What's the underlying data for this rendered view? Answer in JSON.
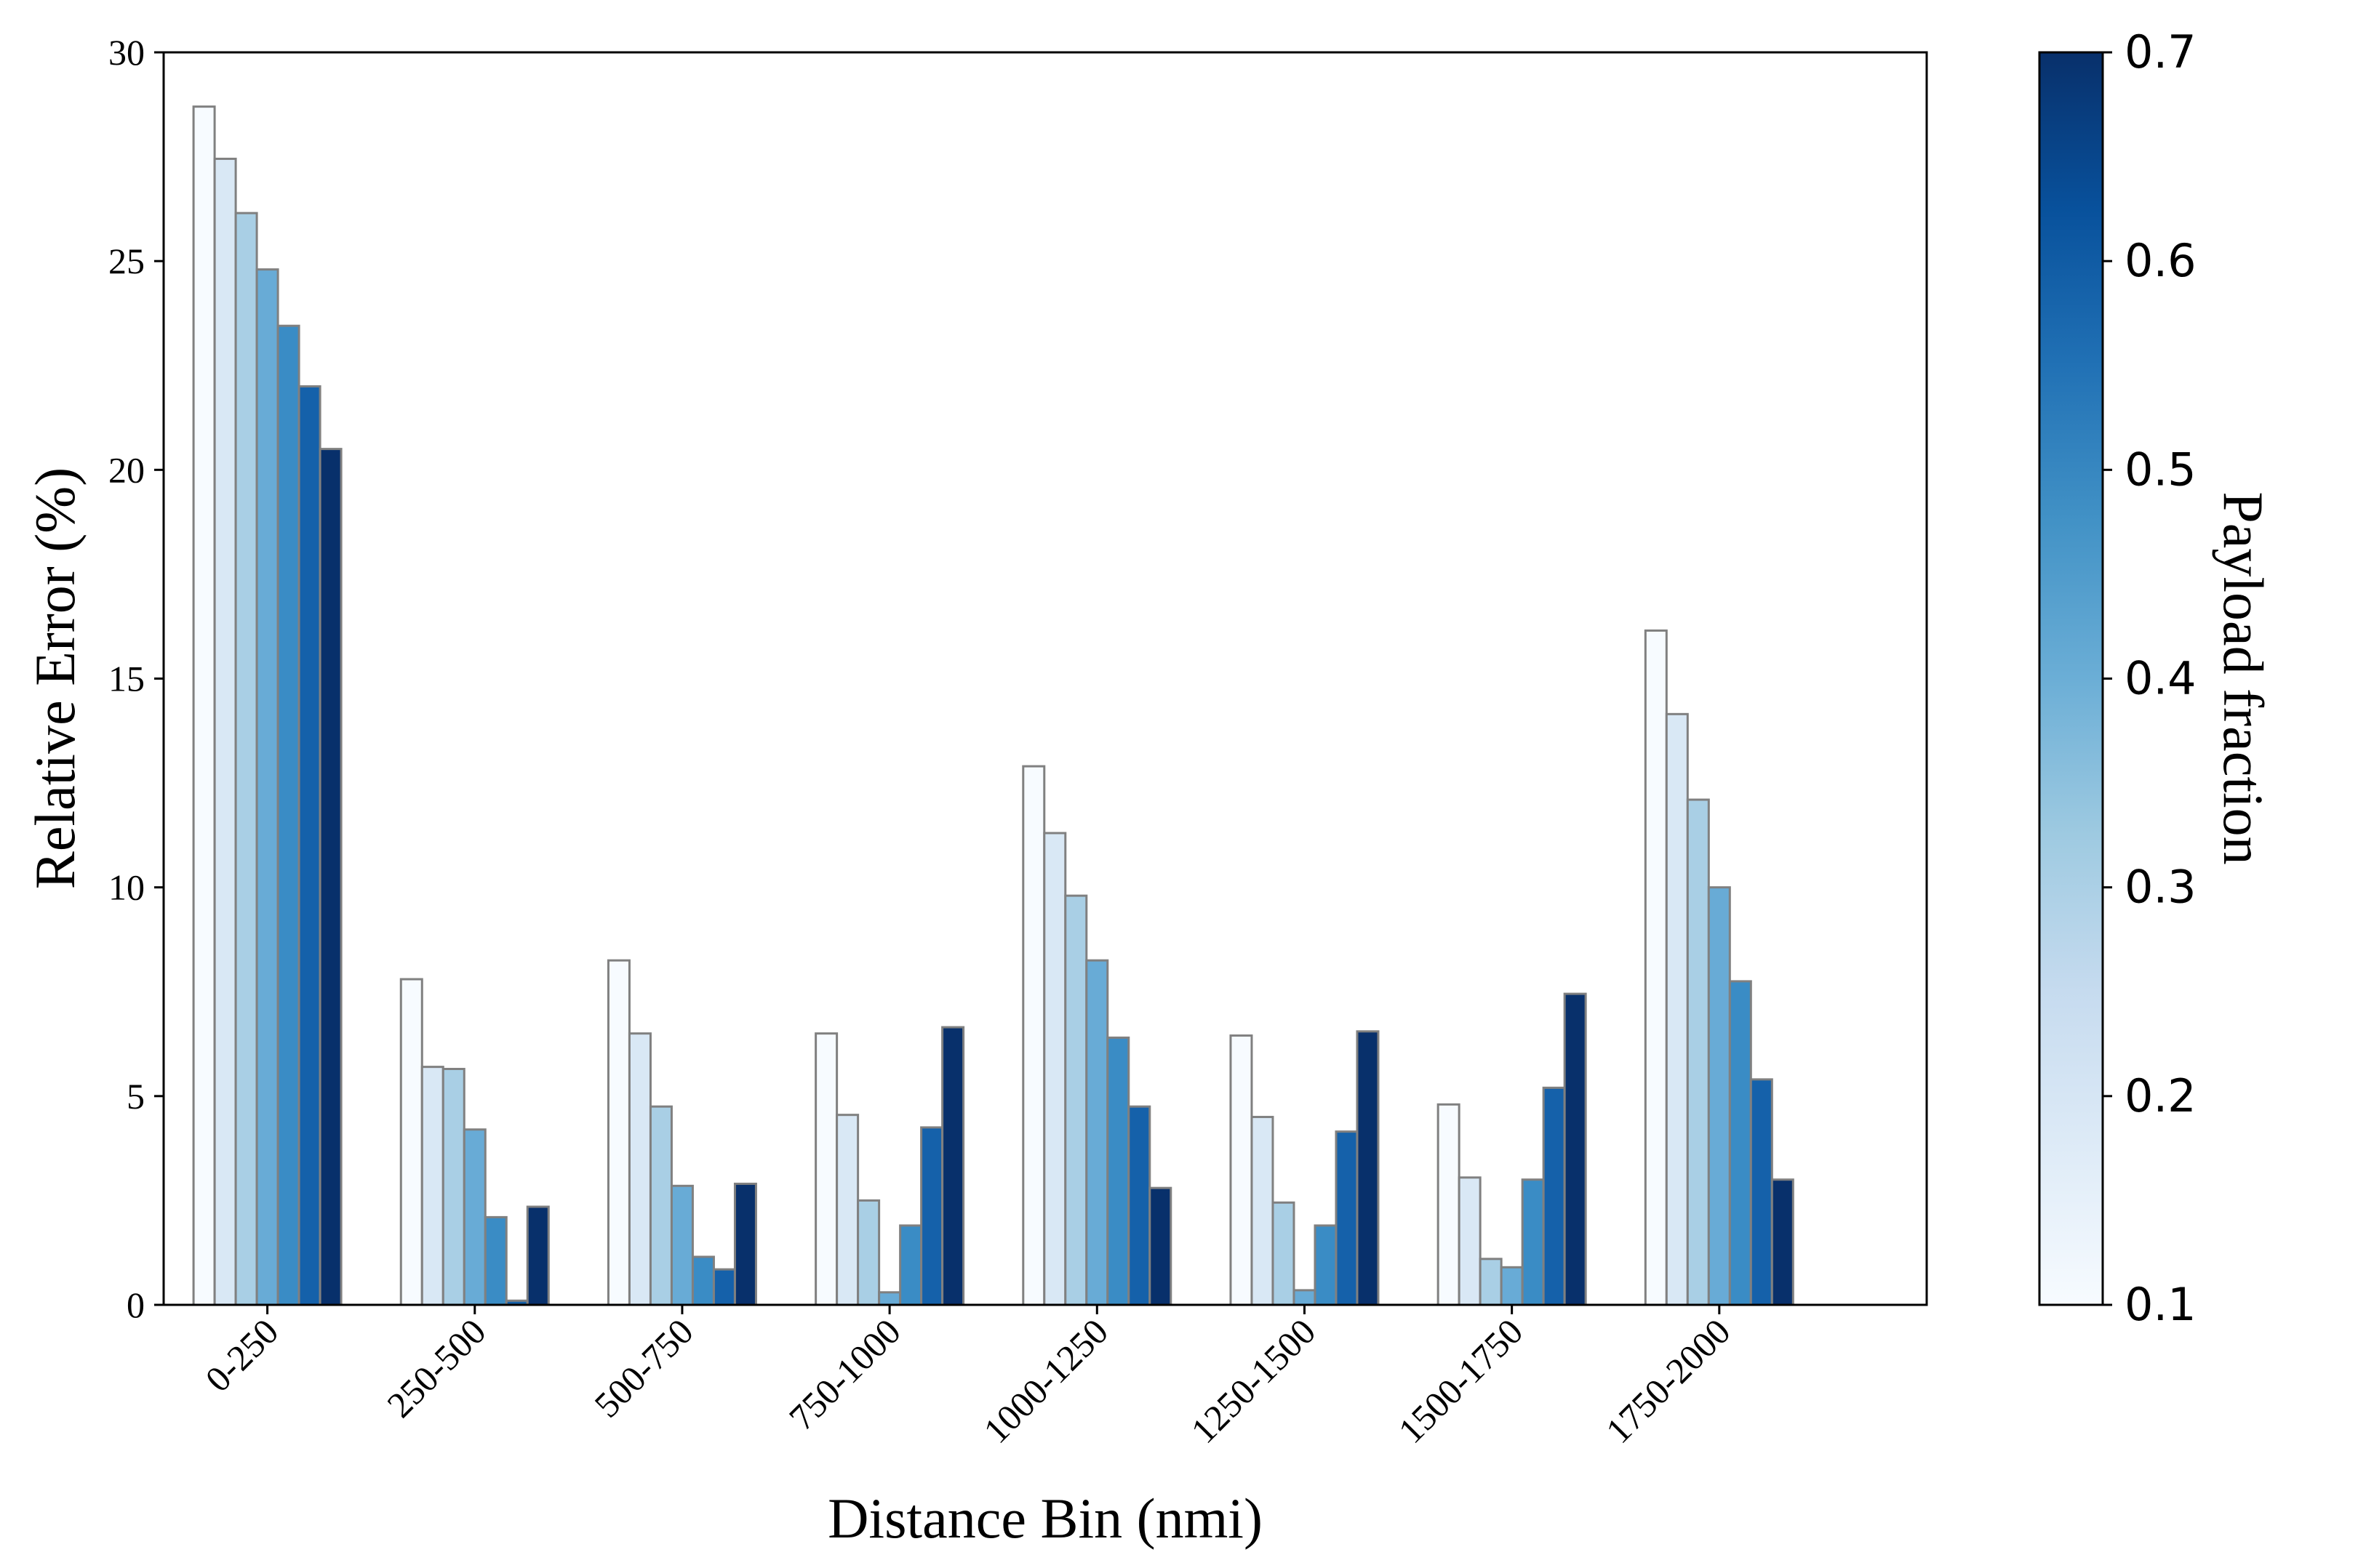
{
  "chart_data": {
    "type": "bar",
    "title": "",
    "xlabel": "Distance Bin (nmi)",
    "ylabel": "Relative Error (%)",
    "ylim": [
      0,
      30
    ],
    "yticks": [
      "0",
      "5",
      "10",
      "15",
      "20",
      "25",
      "30"
    ],
    "grid": false,
    "categories": [
      "0-250",
      "250-500",
      "500-750",
      "750-1000",
      "1000-1250",
      "1250-1500",
      "1500-1750",
      "1750-2000"
    ],
    "series": [
      {
        "payload_fraction": 0.1,
        "color": "#f7fbff",
        "values": [
          28.7,
          7.8,
          8.25,
          6.5,
          12.9,
          6.45,
          4.8,
          16.15
        ]
      },
      {
        "payload_fraction": 0.2,
        "color": "#d9e8f5",
        "values": [
          27.45,
          5.7,
          6.5,
          4.55,
          11.3,
          4.5,
          3.05,
          14.15
        ]
      },
      {
        "payload_fraction": 0.3,
        "color": "#a9cfe5",
        "values": [
          26.15,
          5.65,
          4.75,
          2.5,
          9.8,
          2.45,
          1.1,
          12.1
        ]
      },
      {
        "payload_fraction": 0.4,
        "color": "#68abd6",
        "values": [
          24.8,
          4.2,
          2.85,
          0.3,
          8.25,
          0.35,
          0.9,
          10.0
        ]
      },
      {
        "payload_fraction": 0.5,
        "color": "#3a8cc5",
        "values": [
          23.45,
          2.1,
          1.15,
          1.9,
          6.4,
          1.9,
          3.0,
          7.75
        ]
      },
      {
        "payload_fraction": 0.6,
        "color": "#1561aa",
        "values": [
          22.0,
          0.1,
          0.85,
          4.25,
          4.75,
          4.15,
          5.2,
          5.4
        ]
      },
      {
        "payload_fraction": 0.7,
        "color": "#08306b",
        "values": [
          20.5,
          2.35,
          2.9,
          6.65,
          2.8,
          6.55,
          7.45,
          3.0
        ]
      }
    ],
    "colorbar": {
      "label": "Payload fraction",
      "ticks": [
        "0.1",
        "0.2",
        "0.3",
        "0.4",
        "0.5",
        "0.6",
        "0.7"
      ],
      "range": [
        0.1,
        0.7
      ],
      "colormap": "Blues",
      "stops": [
        "#f7fbff",
        "#deebf7",
        "#c6dbef",
        "#9ecae1",
        "#6baed6",
        "#4292c6",
        "#2171b5",
        "#08519c",
        "#08306b"
      ]
    },
    "bar_edge_color": "#808080"
  }
}
